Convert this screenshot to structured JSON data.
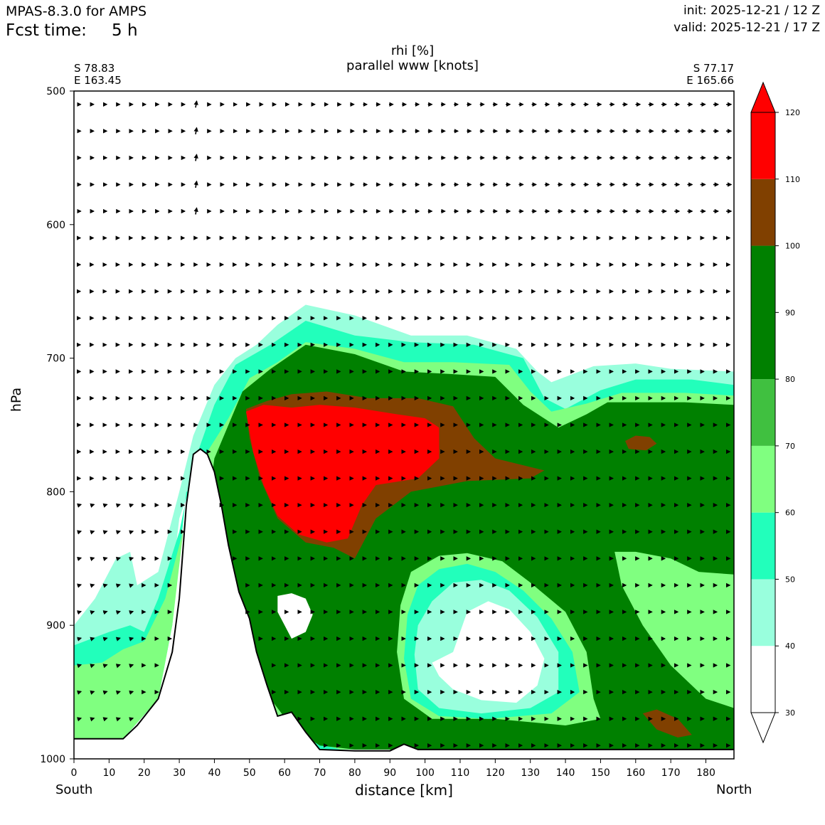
{
  "header": {
    "model": "MPAS-8.3.0 for AMPS",
    "fcst_label": "Fcst time:",
    "fcst_value": "5 h",
    "init": "init: 2025-12-21 / 12 Z",
    "valid": "valid: 2025-12-21 / 17 Z"
  },
  "endpoints": {
    "left": {
      "lat": "S 78.83",
      "lon": "E 163.45"
    },
    "right": {
      "lat": "S 77.17",
      "lon": "E 165.66"
    }
  },
  "chart_data": {
    "type": "cross-section",
    "title": "rhi [%]",
    "subtitle": "parallel www [knots]",
    "xlabel": "distance [km]",
    "ylabel": "hPa",
    "x_left_label": "South",
    "x_right_label": "North",
    "xlim": [
      0,
      188
    ],
    "ylim": [
      1000,
      500
    ],
    "xticks": [
      0,
      10,
      20,
      30,
      40,
      50,
      60,
      70,
      80,
      90,
      100,
      110,
      120,
      130,
      140,
      150,
      160,
      170,
      180
    ],
    "yticks": [
      500,
      600,
      700,
      800,
      900,
      1000
    ],
    "colorbar": {
      "levels": [
        30,
        40,
        50,
        60,
        70,
        80,
        90,
        100,
        110,
        120
      ],
      "bands": [
        {
          "from": 30,
          "to": 40,
          "color": "#ffffff"
        },
        {
          "from": 40,
          "to": 50,
          "color": "#99ffdd"
        },
        {
          "from": 50,
          "to": 60,
          "color": "#22ffbb"
        },
        {
          "from": 60,
          "to": 70,
          "color": "#80ff80"
        },
        {
          "from": 70,
          "to": 80,
          "color": "#40c040"
        },
        {
          "from": 80,
          "to": 100,
          "color": "#008000"
        },
        {
          "from": 100,
          "to": 110,
          "color": "#804000"
        },
        {
          "from": 110,
          "to": 120,
          "color": "#ff0000"
        }
      ]
    },
    "terrain_km_hpa": [
      [
        0,
        985
      ],
      [
        14,
        985
      ],
      [
        18,
        975
      ],
      [
        24,
        955
      ],
      [
        28,
        920
      ],
      [
        30,
        880
      ],
      [
        32,
        810
      ],
      [
        34,
        772
      ],
      [
        36,
        768
      ],
      [
        38,
        772
      ],
      [
        40,
        785
      ],
      [
        42,
        810
      ],
      [
        44,
        840
      ],
      [
        47,
        875
      ],
      [
        50,
        895
      ],
      [
        52,
        920
      ],
      [
        55,
        945
      ],
      [
        58,
        968
      ],
      [
        62,
        965
      ],
      [
        66,
        980
      ],
      [
        70,
        993
      ],
      [
        80,
        994
      ],
      [
        90,
        994
      ],
      [
        94,
        989
      ],
      [
        98,
        993
      ],
      [
        110,
        993
      ],
      [
        188,
        993
      ]
    ],
    "regions": [
      {
        "level": 40,
        "points": [
          [
            0,
            900
          ],
          [
            6,
            880
          ],
          [
            12,
            850
          ],
          [
            16,
            845
          ],
          [
            18,
            870
          ],
          [
            24,
            860
          ],
          [
            30,
            800
          ],
          [
            34,
            758
          ],
          [
            40,
            720
          ],
          [
            46,
            700
          ],
          [
            52,
            690
          ],
          [
            58,
            675
          ],
          [
            66,
            660
          ],
          [
            80,
            668
          ],
          [
            96,
            683
          ],
          [
            112,
            683
          ],
          [
            126,
            693
          ],
          [
            132,
            710
          ],
          [
            136,
            718
          ],
          [
            148,
            706
          ],
          [
            160,
            704
          ],
          [
            170,
            708
          ],
          [
            188,
            710
          ],
          [
            188,
            993
          ],
          [
            66,
            993
          ],
          [
            56,
            968
          ],
          [
            48,
            930
          ],
          [
            42,
            880
          ],
          [
            38,
            820
          ],
          [
            34,
            790
          ],
          [
            30,
            820
          ],
          [
            24,
            955
          ],
          [
            14,
            985
          ],
          [
            0,
            985
          ]
        ]
      },
      {
        "level": 50,
        "points": [
          [
            0,
            915
          ],
          [
            10,
            905
          ],
          [
            16,
            900
          ],
          [
            20,
            905
          ],
          [
            24,
            880
          ],
          [
            30,
            830
          ],
          [
            34,
            780
          ],
          [
            40,
            735
          ],
          [
            46,
            705
          ],
          [
            56,
            690
          ],
          [
            66,
            672
          ],
          [
            80,
            683
          ],
          [
            96,
            688
          ],
          [
            114,
            690
          ],
          [
            128,
            700
          ],
          [
            134,
            730
          ],
          [
            140,
            738
          ],
          [
            150,
            724
          ],
          [
            160,
            716
          ],
          [
            176,
            716
          ],
          [
            188,
            720
          ],
          [
            188,
            993
          ],
          [
            70,
            993
          ],
          [
            60,
            980
          ],
          [
            52,
            950
          ],
          [
            46,
            910
          ],
          [
            40,
            860
          ],
          [
            36,
            800
          ],
          [
            32,
            800
          ],
          [
            28,
            900
          ],
          [
            24,
            955
          ],
          [
            14,
            985
          ],
          [
            0,
            985
          ]
        ]
      },
      {
        "level": 60,
        "points": [
          [
            0,
            930
          ],
          [
            8,
            928
          ],
          [
            14,
            918
          ],
          [
            20,
            912
          ],
          [
            26,
            880
          ],
          [
            32,
            820
          ],
          [
            38,
            770
          ],
          [
            44,
            745
          ],
          [
            50,
            715
          ],
          [
            58,
            703
          ],
          [
            66,
            688
          ],
          [
            80,
            693
          ],
          [
            94,
            703
          ],
          [
            108,
            703
          ],
          [
            124,
            705
          ],
          [
            130,
            725
          ],
          [
            136,
            740
          ],
          [
            146,
            734
          ],
          [
            156,
            726
          ],
          [
            174,
            726
          ],
          [
            188,
            728
          ],
          [
            188,
            993
          ],
          [
            76,
            993
          ],
          [
            66,
            986
          ],
          [
            58,
            975
          ],
          [
            52,
            955
          ],
          [
            46,
            920
          ],
          [
            40,
            880
          ],
          [
            36,
            820
          ],
          [
            32,
            810
          ],
          [
            28,
            900
          ],
          [
            24,
            955
          ],
          [
            14,
            985
          ],
          [
            0,
            985
          ]
        ]
      },
      {
        "level": 80,
        "points": [
          [
            40,
            775
          ],
          [
            44,
            750
          ],
          [
            48,
            725
          ],
          [
            56,
            708
          ],
          [
            66,
            690
          ],
          [
            80,
            697
          ],
          [
            94,
            710
          ],
          [
            108,
            712
          ],
          [
            120,
            714
          ],
          [
            128,
            735
          ],
          [
            138,
            752
          ],
          [
            146,
            742
          ],
          [
            152,
            733
          ],
          [
            174,
            733
          ],
          [
            188,
            735
          ],
          [
            188,
            993
          ],
          [
            80,
            993
          ],
          [
            70,
            990
          ],
          [
            62,
            976
          ],
          [
            56,
            955
          ],
          [
            50,
            930
          ],
          [
            46,
            895
          ],
          [
            42,
            860
          ],
          [
            38,
            815
          ]
        ]
      },
      {
        "level": 100,
        "points": [
          [
            49,
            738
          ],
          [
            55,
            732
          ],
          [
            62,
            727
          ],
          [
            72,
            725
          ],
          [
            84,
            730
          ],
          [
            98,
            730
          ],
          [
            108,
            736
          ],
          [
            114,
            760
          ],
          [
            120,
            775
          ],
          [
            134,
            784
          ],
          [
            130,
            790
          ],
          [
            112,
            792
          ],
          [
            96,
            800
          ],
          [
            86,
            820
          ],
          [
            80,
            850
          ],
          [
            74,
            842
          ],
          [
            66,
            838
          ],
          [
            58,
            820
          ],
          [
            53,
            790
          ],
          [
            50,
            760
          ]
        ]
      },
      {
        "level": 110,
        "points": [
          [
            49,
            740
          ],
          [
            54,
            735
          ],
          [
            62,
            737
          ],
          [
            70,
            735
          ],
          [
            80,
            737
          ],
          [
            92,
            742
          ],
          [
            100,
            745
          ],
          [
            104,
            752
          ],
          [
            104,
            775
          ],
          [
            98,
            790
          ],
          [
            86,
            795
          ],
          [
            82,
            810
          ],
          [
            78,
            835
          ],
          [
            72,
            838
          ],
          [
            64,
            832
          ],
          [
            58,
            818
          ],
          [
            54,
            795
          ],
          [
            51,
            770
          ]
        ]
      },
      {
        "level": 100,
        "points": [
          [
            157,
            762
          ],
          [
            160,
            758
          ],
          [
            164,
            759
          ],
          [
            166,
            764
          ],
          [
            163,
            769
          ],
          [
            158,
            768
          ]
        ]
      },
      {
        "level": 100,
        "points": [
          [
            162,
            966
          ],
          [
            166,
            963
          ],
          [
            172,
            970
          ],
          [
            176,
            982
          ],
          [
            172,
            984
          ],
          [
            166,
            978
          ]
        ]
      },
      {
        "level": 60,
        "points": [
          [
            154,
            845
          ],
          [
            160,
            845
          ],
          [
            170,
            850
          ],
          [
            178,
            860
          ],
          [
            188,
            862
          ],
          [
            188,
            962
          ],
          [
            180,
            955
          ],
          [
            170,
            930
          ],
          [
            162,
            900
          ],
          [
            156,
            870
          ]
        ]
      },
      {
        "level": 60,
        "points": [
          [
            96,
            860
          ],
          [
            104,
            848
          ],
          [
            112,
            846
          ],
          [
            122,
            852
          ],
          [
            130,
            868
          ],
          [
            140,
            890
          ],
          [
            146,
            920
          ],
          [
            148,
            955
          ],
          [
            150,
            970
          ],
          [
            140,
            975
          ],
          [
            120,
            970
          ],
          [
            102,
            970
          ],
          [
            94,
            955
          ],
          [
            92,
            920
          ],
          [
            93,
            885
          ]
        ]
      },
      {
        "level": 50,
        "points": [
          [
            98,
            870
          ],
          [
            104,
            858
          ],
          [
            112,
            854
          ],
          [
            120,
            860
          ],
          [
            128,
            874
          ],
          [
            136,
            895
          ],
          [
            142,
            920
          ],
          [
            144,
            950
          ],
          [
            136,
            966
          ],
          [
            118,
            970
          ],
          [
            104,
            968
          ],
          [
            96,
            955
          ],
          [
            94,
            925
          ],
          [
            95,
            892
          ]
        ]
      },
      {
        "level": 40,
        "points": [
          [
            102,
            882
          ],
          [
            108,
            868
          ],
          [
            116,
            866
          ],
          [
            124,
            874
          ],
          [
            132,
            894
          ],
          [
            138,
            920
          ],
          [
            138,
            950
          ],
          [
            130,
            962
          ],
          [
            116,
            966
          ],
          [
            104,
            962
          ],
          [
            98,
            948
          ],
          [
            97,
            922
          ],
          [
            98,
            900
          ]
        ]
      },
      {
        "level": 30,
        "points": [
          [
            112,
            890
          ],
          [
            118,
            882
          ],
          [
            124,
            888
          ],
          [
            130,
            905
          ],
          [
            134,
            925
          ],
          [
            132,
            945
          ],
          [
            126,
            958
          ],
          [
            116,
            956
          ],
          [
            108,
            948
          ],
          [
            104,
            938
          ],
          [
            102,
            928
          ],
          [
            108,
            920
          ],
          [
            110,
            905
          ]
        ]
      },
      {
        "level": 30,
        "points": [
          [
            58,
            878
          ],
          [
            62,
            876
          ],
          [
            66,
            880
          ],
          [
            68,
            892
          ],
          [
            66,
            905
          ],
          [
            62,
            910
          ],
          [
            60,
            900
          ],
          [
            58,
            890
          ]
        ]
      }
    ],
    "arrow_rows_hpa": [
      510,
      530,
      550,
      570,
      590,
      610,
      630,
      650,
      670,
      690,
      710,
      730,
      750,
      770,
      790,
      810,
      830,
      850,
      870,
      890,
      910,
      930,
      950,
      970,
      990
    ],
    "arrow_col_spacing_km": 3.7
  }
}
